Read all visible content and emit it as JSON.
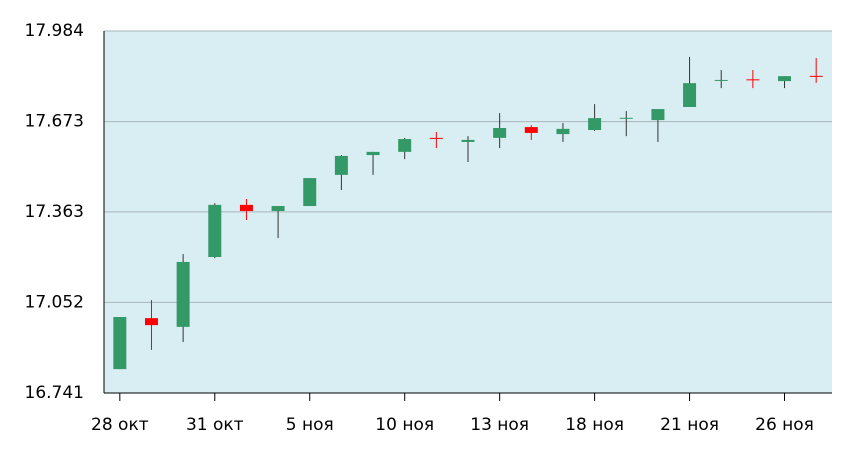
{
  "chart_data": {
    "type": "candlestick",
    "categories": [
      "28 окт",
      null,
      null,
      "31 окт",
      null,
      null,
      "5 ноя",
      null,
      null,
      "10 ноя",
      null,
      null,
      "13 ноя",
      null,
      null,
      "18 ноя",
      null,
      null,
      "21 ноя",
      null,
      null,
      "26 ноя",
      null
    ],
    "open": [
      16.823,
      16.998,
      16.968,
      17.208,
      17.387,
      17.366,
      17.383,
      17.49,
      17.558,
      17.569,
      17.617,
      17.603,
      17.617,
      17.654,
      17.63,
      17.644,
      17.683,
      17.678,
      17.723,
      17.813,
      17.818,
      17.812,
      17.83
    ],
    "high": [
      17.002,
      17.06,
      17.218,
      17.393,
      17.407,
      17.383,
      17.479,
      17.558,
      17.569,
      17.617,
      17.637,
      17.623,
      17.702,
      17.661,
      17.668,
      17.733,
      17.709,
      17.716,
      17.895,
      17.85,
      17.85,
      17.829,
      17.891
    ],
    "low": [
      16.823,
      16.889,
      16.916,
      17.204,
      17.335,
      17.273,
      17.383,
      17.438,
      17.49,
      17.544,
      17.582,
      17.534,
      17.582,
      17.61,
      17.603,
      17.641,
      17.623,
      17.603,
      17.723,
      17.788,
      17.788,
      17.788,
      17.806
    ],
    "close": [
      17.002,
      16.974,
      17.191,
      17.387,
      17.366,
      17.383,
      17.479,
      17.555,
      17.569,
      17.613,
      17.614,
      17.61,
      17.651,
      17.634,
      17.648,
      17.685,
      17.686,
      17.716,
      17.805,
      17.816,
      17.815,
      17.829,
      17.827
    ],
    "up_color": "#339966",
    "down_color": "#ff0000",
    "background": "#d9eef3",
    "ylim": [
      16.741,
      17.984
    ],
    "yticks": [
      16.741,
      17.052,
      17.363,
      17.673,
      17.984
    ],
    "grid": true
  }
}
